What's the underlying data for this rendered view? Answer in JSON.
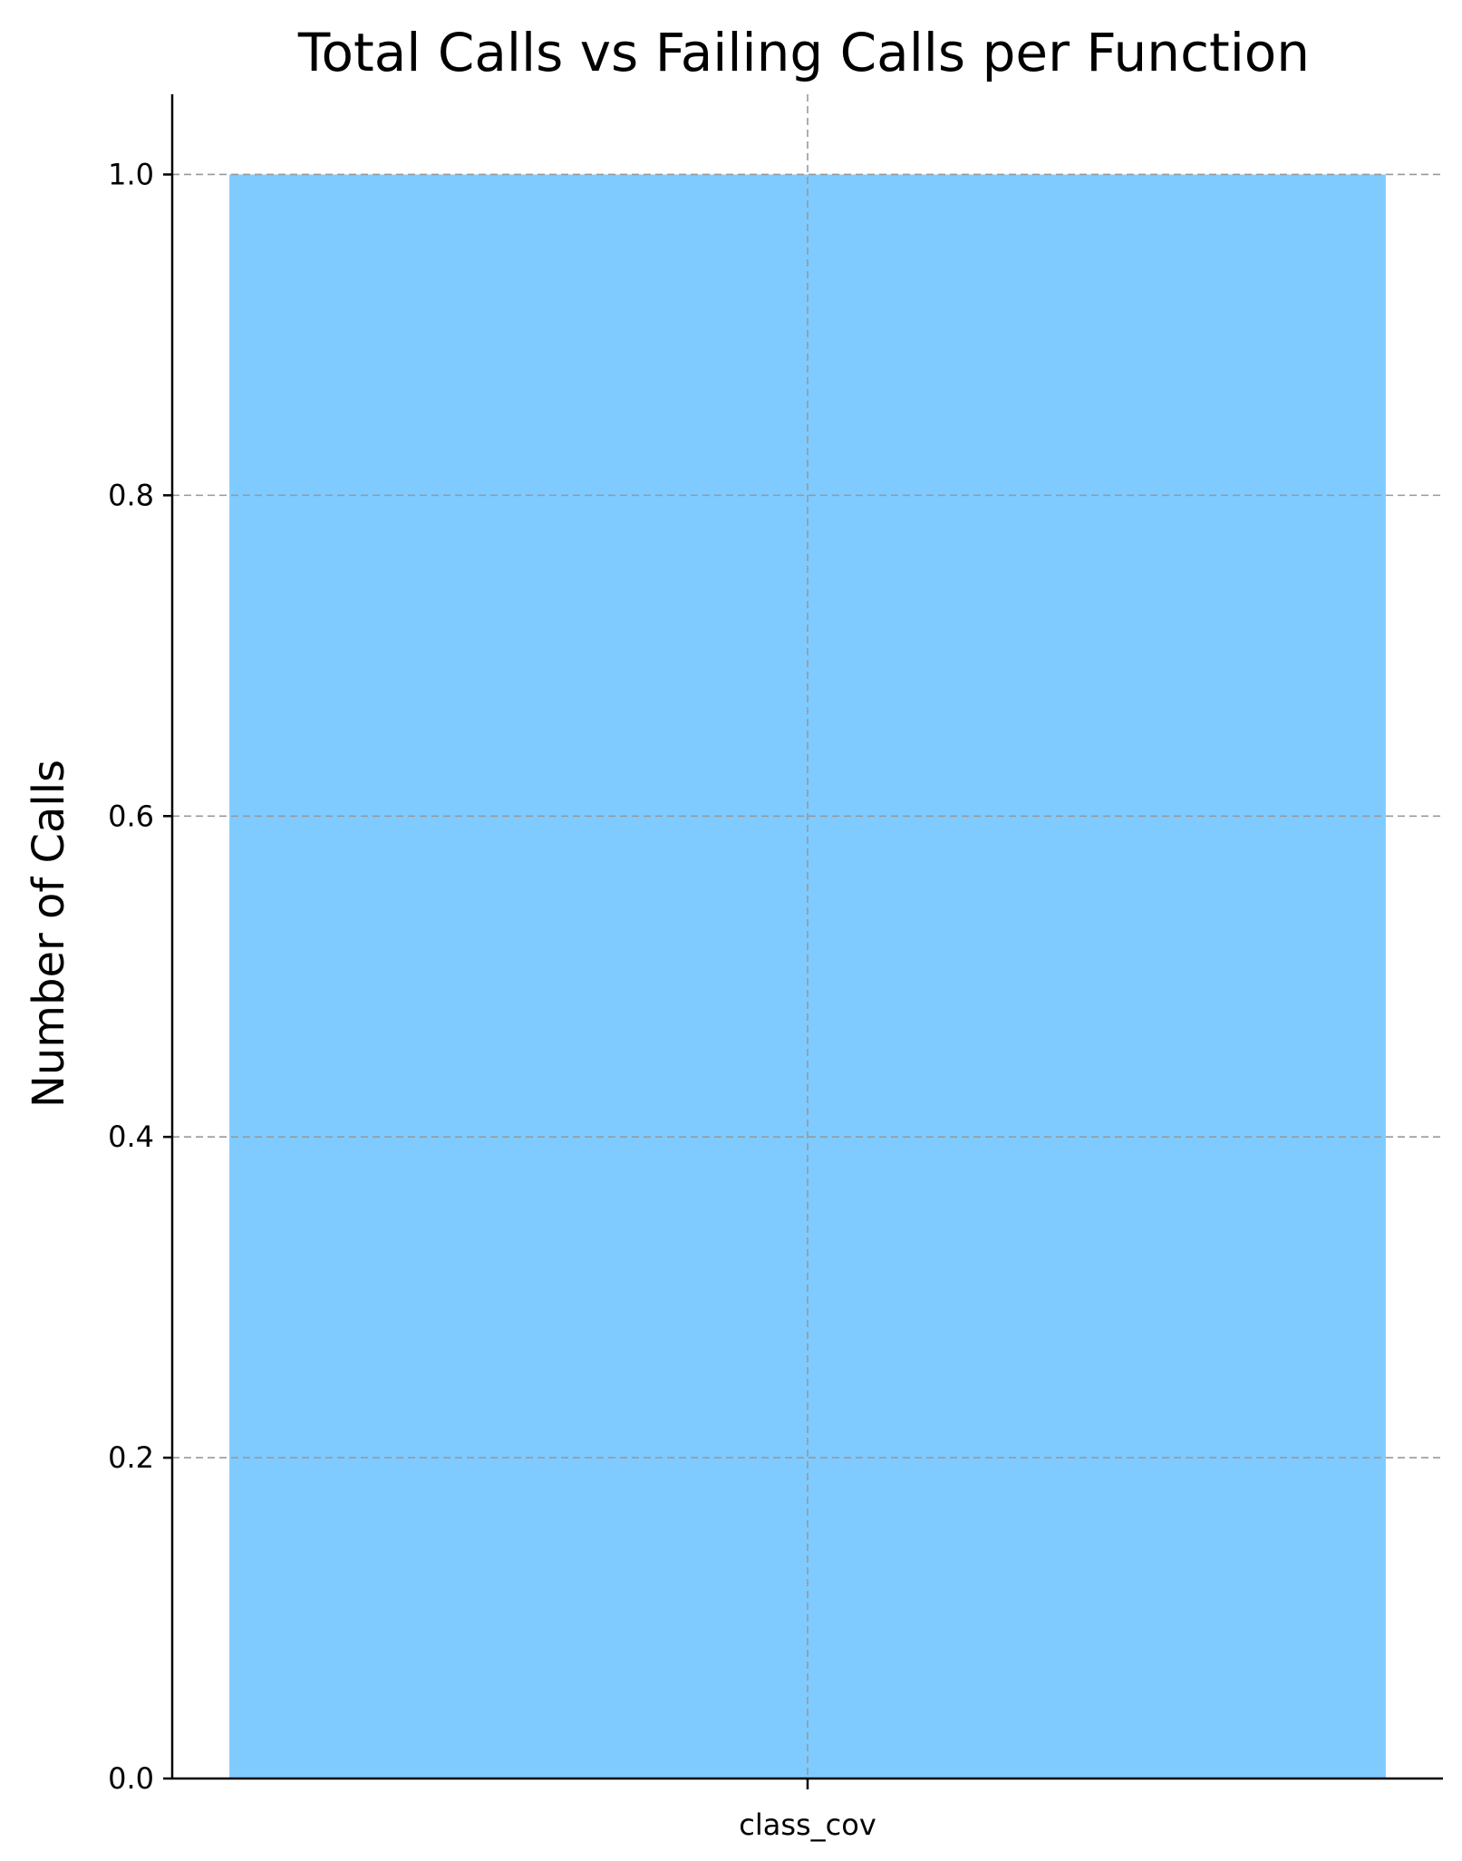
{
  "chart_data": {
    "type": "bar",
    "title": "Total Calls vs Failing Calls per Function",
    "xlabel": "",
    "ylabel": "Number of Calls",
    "categories": [
      "class_cov"
    ],
    "series": [
      {
        "values": [
          1
        ],
        "color": "#7FCBFF"
      }
    ],
    "ylim": [
      0,
      1.05
    ],
    "yticks": [
      0.0,
      0.2,
      0.4,
      0.6,
      0.8,
      1.0
    ],
    "ytick_labels": [
      "0.0",
      "0.2",
      "0.4",
      "0.6",
      "0.8",
      "1.0"
    ],
    "grid": true,
    "legend": "none"
  }
}
